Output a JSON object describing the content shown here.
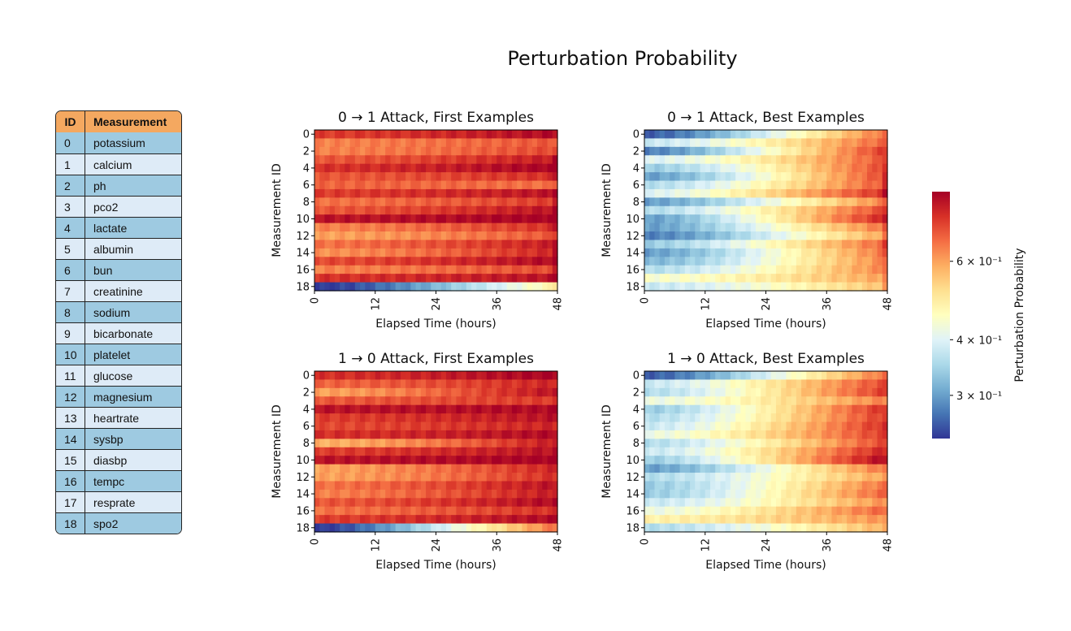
{
  "title": "Perturbation Probability",
  "table": {
    "headers": [
      "ID",
      "Measurement"
    ],
    "rows": [
      [
        "0",
        "potassium"
      ],
      [
        "1",
        "calcium"
      ],
      [
        "2",
        "ph"
      ],
      [
        "3",
        "pco2"
      ],
      [
        "4",
        "lactate"
      ],
      [
        "5",
        "albumin"
      ],
      [
        "6",
        "bun"
      ],
      [
        "7",
        "creatinine"
      ],
      [
        "8",
        "sodium"
      ],
      [
        "9",
        "bicarbonate"
      ],
      [
        "10",
        "platelet"
      ],
      [
        "11",
        "glucose"
      ],
      [
        "12",
        "magnesium"
      ],
      [
        "13",
        "heartrate"
      ],
      [
        "14",
        "sysbp"
      ],
      [
        "15",
        "diasbp"
      ],
      [
        "16",
        "tempc"
      ],
      [
        "17",
        "resprate"
      ],
      [
        "18",
        "spo2"
      ]
    ],
    "colors": {
      "header": "#f4a860",
      "odd": "#9ecae1",
      "even": "#deebf7"
    }
  },
  "colorbar": {
    "label": "Perturbation Probability",
    "scale": "log",
    "colormap": "RdYlBu_r",
    "range": [
      0.24,
      0.86
    ],
    "ticks": [
      {
        "value": 0.3,
        "label": "3 × 10⁻¹"
      },
      {
        "value": 0.4,
        "label": "4 × 10⁻¹"
      },
      {
        "value": 0.6,
        "label": "6 × 10⁻¹"
      }
    ]
  },
  "chart_data": [
    {
      "type": "heatmap",
      "title": "0 → 1 Attack, First Examples",
      "xlabel": "Elapsed Time (hours)",
      "ylabel": "Measurement ID",
      "x_range": [
        0,
        48
      ],
      "x_ticks": [
        "0",
        "12",
        "24",
        "36",
        "48"
      ],
      "y_ticks": [
        "0",
        "2",
        "4",
        "6",
        "8",
        "10",
        "12",
        "14",
        "16",
        "18"
      ],
      "row_start": [
        0.74,
        0.64,
        0.64,
        0.7,
        0.76,
        0.7,
        0.68,
        0.74,
        0.66,
        0.7,
        0.82,
        0.64,
        0.6,
        0.66,
        0.62,
        0.72,
        0.64,
        0.76,
        0.24
      ],
      "row_end": [
        0.84,
        0.7,
        0.72,
        0.8,
        0.86,
        0.76,
        0.66,
        0.82,
        0.74,
        0.82,
        0.86,
        0.76,
        0.7,
        0.8,
        0.78,
        0.84,
        0.72,
        0.82,
        0.48
      ]
    },
    {
      "type": "heatmap",
      "title": "0 → 1 Attack, Best Examples",
      "xlabel": "Elapsed Time (hours)",
      "ylabel": "Measurement ID",
      "x_range": [
        0,
        48
      ],
      "x_ticks": [
        "0",
        "12",
        "24",
        "36",
        "48"
      ],
      "y_ticks": [
        "0",
        "2",
        "4",
        "6",
        "8",
        "10",
        "12",
        "14",
        "16",
        "18"
      ],
      "row_start": [
        0.26,
        0.38,
        0.28,
        0.4,
        0.34,
        0.3,
        0.36,
        0.4,
        0.3,
        0.36,
        0.3,
        0.3,
        0.28,
        0.34,
        0.3,
        0.32,
        0.36,
        0.44,
        0.38
      ],
      "row_end": [
        0.66,
        0.68,
        0.74,
        0.7,
        0.72,
        0.72,
        0.7,
        0.76,
        0.64,
        0.72,
        0.78,
        0.66,
        0.6,
        0.68,
        0.66,
        0.64,
        0.64,
        0.6,
        0.56
      ]
    },
    {
      "type": "heatmap",
      "title": "1 → 0 Attack, First Examples",
      "xlabel": "Elapsed Time (hours)",
      "ylabel": "Measurement ID",
      "x_range": [
        0,
        48
      ],
      "x_ticks": [
        "0",
        "12",
        "24",
        "36",
        "48"
      ],
      "y_ticks": [
        "0",
        "2",
        "4",
        "6",
        "8",
        "10",
        "12",
        "14",
        "16",
        "18"
      ],
      "row_start": [
        0.76,
        0.68,
        0.6,
        0.7,
        0.82,
        0.74,
        0.72,
        0.76,
        0.58,
        0.74,
        0.82,
        0.6,
        0.6,
        0.66,
        0.64,
        0.7,
        0.66,
        0.74,
        0.24
      ],
      "row_end": [
        0.86,
        0.78,
        0.82,
        0.74,
        0.84,
        0.82,
        0.78,
        0.84,
        0.8,
        0.82,
        0.86,
        0.78,
        0.76,
        0.82,
        0.8,
        0.84,
        0.76,
        0.84,
        0.66
      ]
    },
    {
      "type": "heatmap",
      "title": "1 → 0 Attack, Best Examples",
      "xlabel": "Elapsed Time (hours)",
      "ylabel": "Measurement ID",
      "x_range": [
        0,
        48
      ],
      "x_ticks": [
        "0",
        "12",
        "24",
        "36",
        "48"
      ],
      "y_ticks": [
        "0",
        "2",
        "4",
        "6",
        "8",
        "10",
        "12",
        "14",
        "16",
        "18"
      ],
      "row_start": [
        0.26,
        0.38,
        0.36,
        0.42,
        0.34,
        0.36,
        0.38,
        0.42,
        0.36,
        0.38,
        0.34,
        0.3,
        0.36,
        0.34,
        0.34,
        0.38,
        0.42,
        0.48,
        0.36
      ],
      "row_end": [
        0.66,
        0.72,
        0.74,
        0.64,
        0.76,
        0.74,
        0.76,
        0.74,
        0.72,
        0.78,
        0.84,
        0.66,
        0.6,
        0.66,
        0.68,
        0.62,
        0.68,
        0.62,
        0.58
      ]
    }
  ]
}
